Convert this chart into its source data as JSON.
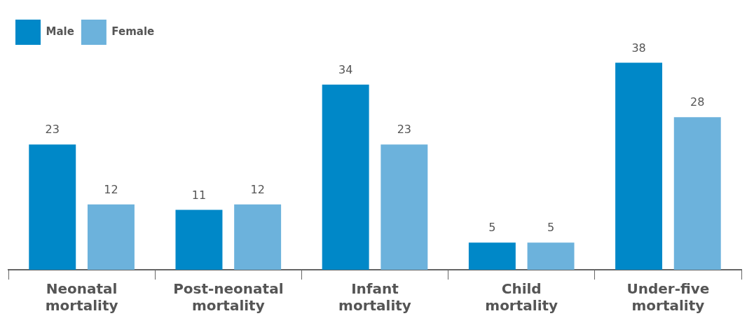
{
  "chart_data": {
    "type": "bar",
    "categories": [
      "Neonatal mortality",
      "Post-neonatal mortality",
      "Infant mortality",
      "Child mortality",
      "Under-five mortality"
    ],
    "series": [
      {
        "name": "Male",
        "color": "#0088c8",
        "values": [
          23,
          11,
          34,
          5,
          38
        ]
      },
      {
        "name": "Female",
        "color": "#6cb2dc",
        "values": [
          12,
          12,
          23,
          5,
          28
        ]
      }
    ],
    "data_labels": true,
    "legend": "top left",
    "grid": false
  }
}
